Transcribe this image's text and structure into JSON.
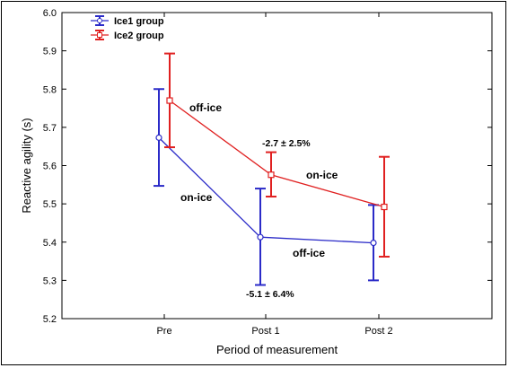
{
  "chart_data": {
    "type": "line",
    "xlabel": "Period of measurement",
    "ylabel": "Reactive agility (s)",
    "categories": [
      "Pre",
      "Post 1",
      "Post 2"
    ],
    "ylim": [
      5.2,
      6.0
    ],
    "yticks": [
      "5.2",
      "5.3",
      "5.4",
      "5.5",
      "5.6",
      "5.7",
      "5.8",
      "5.9",
      "6.0"
    ],
    "grid": false,
    "legend_position": "top-left",
    "series": [
      {
        "name": "Ice1 group",
        "color": "#2b2bc8",
        "marker": "circle",
        "values": [
          5.673,
          5.413,
          5.398
        ],
        "err_low": [
          5.547,
          5.288,
          5.3
        ],
        "err_high": [
          5.8,
          5.54,
          5.497
        ]
      },
      {
        "name": "Ice2 group",
        "color": "#e02020",
        "marker": "square",
        "values": [
          5.77,
          5.576,
          5.492
        ],
        "err_low": [
          5.648,
          5.519,
          5.362
        ],
        "err_high": [
          5.893,
          5.635,
          5.623
        ]
      }
    ],
    "annotations": [
      {
        "text": "off-ice",
        "style": "large"
      },
      {
        "text": "-2.7 ± 2.5%",
        "style": "small"
      },
      {
        "text": "on-ice",
        "style": "large"
      },
      {
        "text": "on-ice",
        "style": "large"
      },
      {
        "text": "off-ice",
        "style": "large"
      },
      {
        "text": "-5.1 ± 6.4%",
        "style": "small"
      }
    ]
  }
}
